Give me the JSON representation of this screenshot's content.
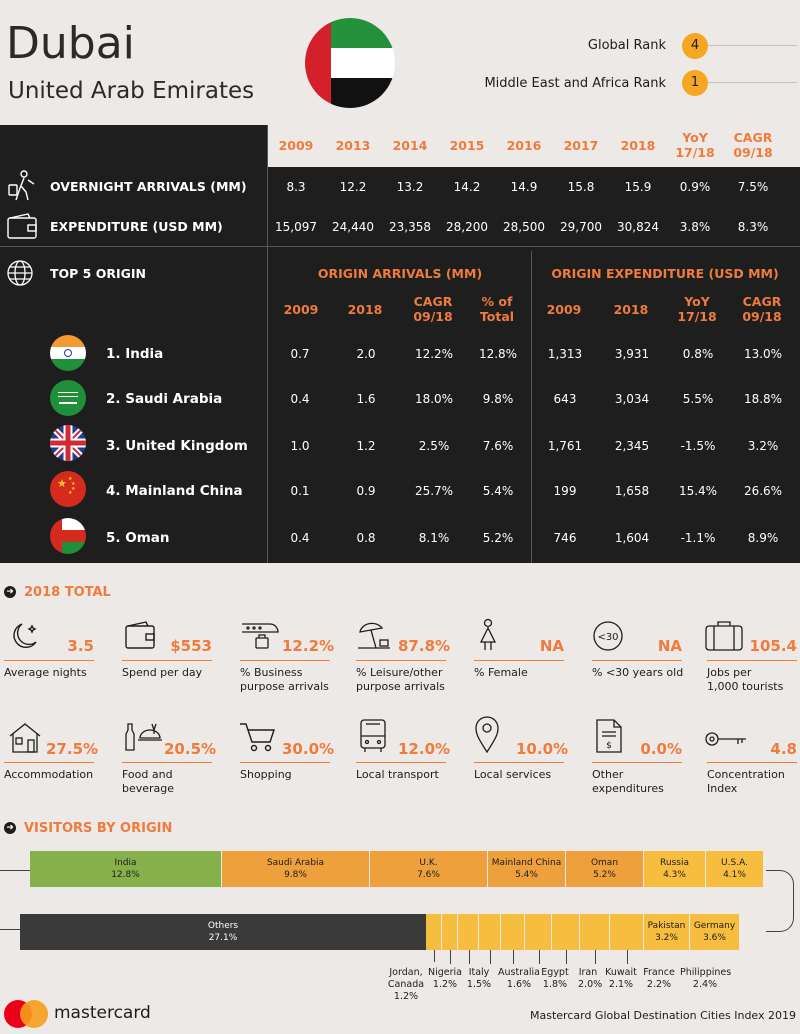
{
  "header": {
    "city": "Dubai",
    "country": "United Arab Emirates",
    "global_rank_label": "Global Rank",
    "global_rank": "4",
    "region_rank_label": "Middle East and Africa Rank",
    "region_rank": "1"
  },
  "summary": {
    "years": [
      "2009",
      "2013",
      "2014",
      "2015",
      "2016",
      "2017",
      "2018"
    ],
    "yoy_header": [
      "YoY",
      "17/18"
    ],
    "cagr_header": [
      "CAGR",
      "09/18"
    ],
    "rows": [
      {
        "label": "OVERNIGHT ARRIVALS (MM)",
        "values": [
          "8.3",
          "12.2",
          "13.2",
          "14.2",
          "14.9",
          "15.8",
          "15.9",
          "0.9%",
          "7.5%"
        ]
      },
      {
        "label": "EXPENDITURE (USD MM)",
        "values": [
          "15,097",
          "24,440",
          "23,358",
          "28,200",
          "28,500",
          "29,700",
          "30,824",
          "3.8%",
          "8.3%"
        ]
      }
    ]
  },
  "origins": {
    "title": "TOP 5 ORIGIN",
    "arrivals_title": "ORIGIN ARRIVALS (MM)",
    "expenditure_title": "ORIGIN EXPENDITURE (USD MM)",
    "arr_cols": [
      "2009",
      "2018"
    ],
    "arr_cagr": [
      "CAGR",
      "09/18"
    ],
    "arr_total": [
      "% of",
      "Total"
    ],
    "exp_cols": [
      "2009",
      "2018"
    ],
    "exp_yoy": [
      "YoY",
      "17/18"
    ],
    "exp_cagr": [
      "CAGR",
      "09/18"
    ],
    "rows": [
      {
        "name": "1. India",
        "values": [
          "0.7",
          "2.0",
          "12.2%",
          "12.8%",
          "1,313",
          "3,931",
          "0.8%",
          "13.0%"
        ]
      },
      {
        "name": "2. Saudi Arabia",
        "values": [
          "0.4",
          "1.6",
          "18.0%",
          "9.8%",
          "643",
          "3,034",
          "5.5%",
          "18.8%"
        ]
      },
      {
        "name": "3. United Kingdom",
        "values": [
          "1.0",
          "1.2",
          "2.5%",
          "7.6%",
          "1,761",
          "2,345",
          "-1.5%",
          "3.2%"
        ]
      },
      {
        "name": "4. Mainland China",
        "values": [
          "0.1",
          "0.9",
          "25.7%",
          "5.4%",
          "199",
          "1,658",
          "15.4%",
          "26.6%"
        ]
      },
      {
        "name": "5. Oman",
        "values": [
          "0.4",
          "0.8",
          "8.1%",
          "5.2%",
          "746",
          "1,604",
          "-1.1%",
          "8.9%"
        ]
      }
    ]
  },
  "totals": {
    "title": "2018 TOTAL",
    "row1": [
      {
        "value": "3.5",
        "label": [
          "Average nights"
        ],
        "icon": "moon-icon"
      },
      {
        "value": "$553",
        "label": [
          "Spend per day"
        ],
        "icon": "wallet-icon"
      },
      {
        "value": "12.2%",
        "label": [
          "% Business",
          "purpose arrivals"
        ],
        "icon": "train-icon"
      },
      {
        "value": "87.8%",
        "label": [
          "% Leisure/other",
          "purpose arrivals"
        ],
        "icon": "beach-icon"
      },
      {
        "value": "NA",
        "label": [
          "% Female"
        ],
        "icon": "female-icon"
      },
      {
        "value": "NA",
        "label": [
          "% <30 years old"
        ],
        "icon": "under-30-icon",
        "icon_text": "<30"
      },
      {
        "value": "105.4",
        "label": [
          "Jobs per",
          "1,000 tourists"
        ],
        "icon": "suitcase-icon"
      }
    ],
    "row2": [
      {
        "value": "27.5%",
        "label": [
          "Accommodation"
        ],
        "icon": "house-icon"
      },
      {
        "value": "20.5%",
        "label": [
          "Food and",
          "beverage"
        ],
        "icon": "food-icon"
      },
      {
        "value": "30.0%",
        "label": [
          "Shopping"
        ],
        "icon": "cart-icon"
      },
      {
        "value": "12.0%",
        "label": [
          "Local transport"
        ],
        "icon": "bus-icon"
      },
      {
        "value": "10.0%",
        "label": [
          "Local services"
        ],
        "icon": "pin-icon"
      },
      {
        "value": "0.0%",
        "label": [
          "Other",
          "expenditures"
        ],
        "icon": "document-icon"
      },
      {
        "value": "4.8",
        "label": [
          "Concentration",
          "Index"
        ],
        "icon": "key-icon"
      }
    ]
  },
  "visitors": {
    "title": "VISITORS BY ORIGIN",
    "row1": [
      {
        "name": "India",
        "pct": "12.8%",
        "color": "#86b04c"
      },
      {
        "name": "Saudi Arabia",
        "pct": "9.8%",
        "color": "#eea03c"
      },
      {
        "name": "U.K.",
        "pct": "7.6%",
        "color": "#eea03c"
      },
      {
        "name": "Mainland China",
        "pct": "5.4%",
        "color": "#eea03c"
      },
      {
        "name": "Oman",
        "pct": "5.2%",
        "color": "#eea03c"
      },
      {
        "name": "Russia",
        "pct": "4.3%",
        "color": "#f7bd3f"
      },
      {
        "name": "U.S.A.",
        "pct": "4.1%",
        "color": "#f7bd3f"
      }
    ],
    "others": {
      "name": "Others",
      "pct": "27.1%",
      "color": "#3a3a3a"
    },
    "row2_right": [
      {
        "name": "Pakistan",
        "pct": "3.2%"
      },
      {
        "name": "Germany",
        "pct": "3.6%"
      }
    ],
    "small": [
      {
        "name": "Jordan,\nCanada",
        "pct": "1.2%"
      },
      {
        "name": "Nigeria",
        "pct": "1.2%"
      },
      {
        "name": "Italy",
        "pct": "1.5%"
      },
      {
        "name": "Australia",
        "pct": "1.6%"
      },
      {
        "name": "Egypt",
        "pct": "1.8%"
      },
      {
        "name": "Iran",
        "pct": "2.0%"
      },
      {
        "name": "Kuwait",
        "pct": "2.1%"
      },
      {
        "name": "France",
        "pct": "2.2%"
      },
      {
        "name": "Philippines",
        "pct": "2.4%"
      }
    ]
  },
  "footer": {
    "brand": "mastercard",
    "source": "Mastercard Global Destination Cities Index 2019"
  }
}
